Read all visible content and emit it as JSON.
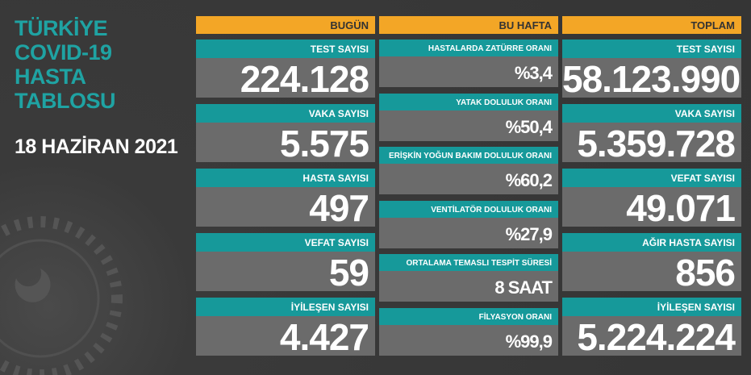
{
  "title_lines": [
    "TÜRKİYE",
    "COVID-19",
    "HASTA",
    "TABLOSU"
  ],
  "date": "18 HAZİRAN 2021",
  "columns": [
    {
      "header": "BUGÜN",
      "items": [
        {
          "label": "TEST SAYISI",
          "value": "224.128"
        },
        {
          "label": "VAKA SAYISI",
          "value": "5.575"
        },
        {
          "label": "HASTA SAYISI",
          "value": "497"
        },
        {
          "label": "VEFAT SAYISI",
          "value": "59"
        },
        {
          "label": "İYİLEŞEN SAYISI",
          "value": "4.427"
        }
      ]
    },
    {
      "header": "BU HAFTA",
      "items": [
        {
          "label": "HASTALARDA ZATÜRRE ORANI",
          "value": "%3,4"
        },
        {
          "label": "YATAK DOLULUK ORANI",
          "value": "%50,4"
        },
        {
          "label": "ERİŞKİN YOĞUN BAKIM DOLULUK ORANI",
          "value": "%60,2"
        },
        {
          "label": "VENTİLATÖR DOLULUK ORANI",
          "value": "%27,9"
        },
        {
          "label": "ORTALAMA TEMASLI TESPİT SÜRESİ",
          "value": "8 SAAT"
        },
        {
          "label": "FİLYASYON ORANI",
          "value": "%99,9"
        }
      ]
    },
    {
      "header": "TOPLAM",
      "items": [
        {
          "label": "TEST SAYISI",
          "value": "58.123.990"
        },
        {
          "label": "VAKA SAYISI",
          "value": "5.359.728"
        },
        {
          "label": "VEFAT SAYISI",
          "value": "49.071"
        },
        {
          "label": "AĞIR HASTA SAYISI",
          "value": "856"
        },
        {
          "label": "İYİLEŞEN SAYISI",
          "value": "5.224.224"
        }
      ]
    }
  ]
}
